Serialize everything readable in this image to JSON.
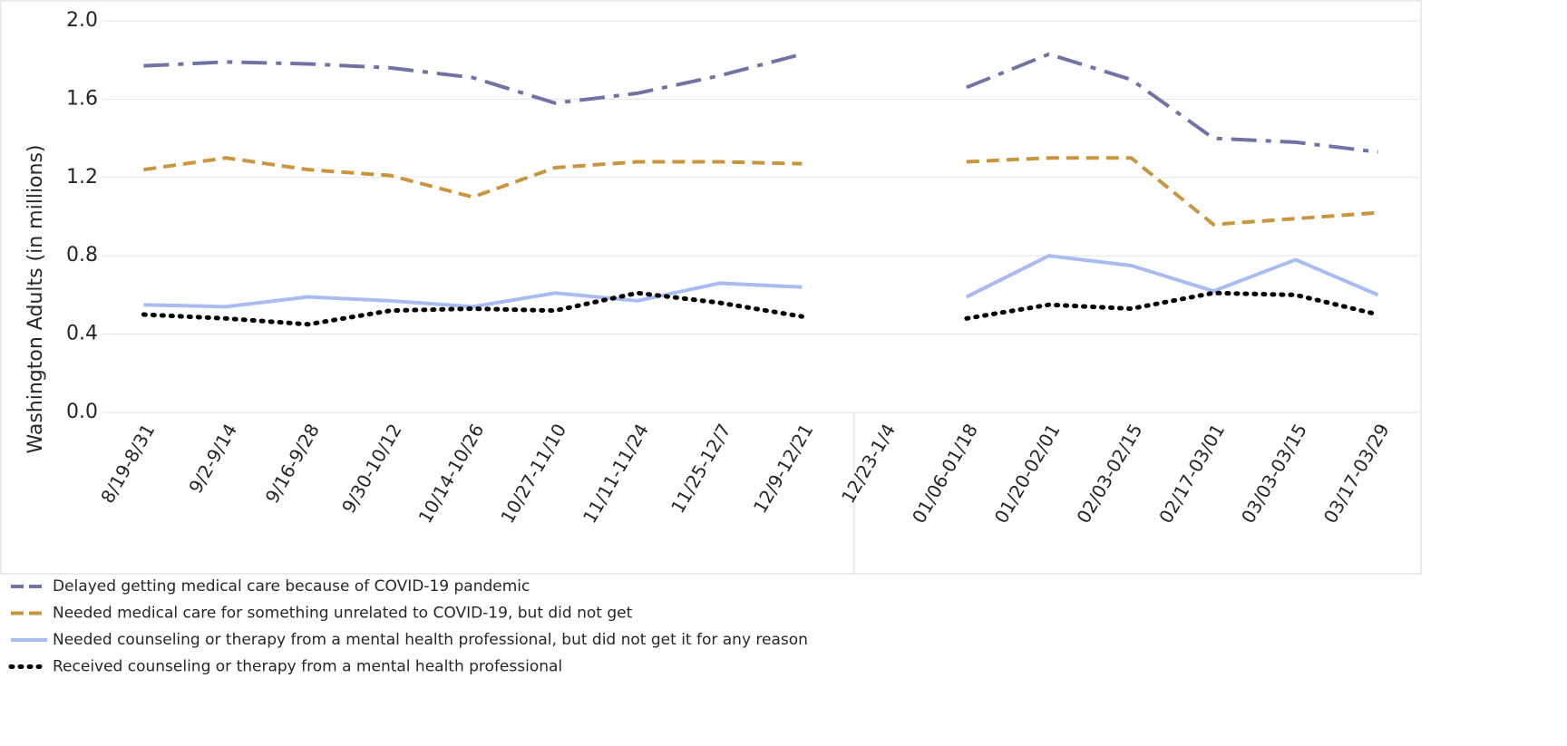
{
  "chart_data": {
    "type": "line",
    "y_label": "Washington Adults (in millions)",
    "categories": [
      "8/19-8/31",
      "9/2-9/14",
      "9/16-9/28",
      "9/30-10/12",
      "10/14-10/26",
      "10/27-11/10",
      "11/11-11/24",
      "11/25-12/7",
      "12/9-12/21",
      "12/23-1/4",
      "01/06-01/18",
      "01/20-02/01",
      "02/03-02/15",
      "02/17-03/01",
      "03/03-03/15",
      "03/17-03/29"
    ],
    "series": [
      {
        "name": "Delayed getting medical care because of COVID-19 pandemic",
        "color": "#6f74a6",
        "dash": "28 10 6 10",
        "values": [
          1.77,
          1.79,
          1.78,
          1.76,
          1.71,
          1.58,
          1.63,
          1.72,
          1.83,
          null,
          1.66,
          1.83,
          1.7,
          1.4,
          1.38,
          1.33
        ]
      },
      {
        "name": "Needed medical care for something unrelated to COVID-19, but did not get",
        "color": "#c9963e",
        "dash": "14 8",
        "values": [
          1.24,
          1.3,
          1.24,
          1.21,
          1.1,
          1.25,
          1.28,
          1.28,
          1.27,
          null,
          1.28,
          1.3,
          1.3,
          0.96,
          0.99,
          1.02
        ]
      },
      {
        "name": "Needed counseling or therapy from a mental health professional, but did not get it for any reason",
        "color": "#a9bcf2",
        "dash": "none",
        "values": [
          0.55,
          0.54,
          0.59,
          0.57,
          0.54,
          0.61,
          0.57,
          0.66,
          0.64,
          null,
          0.59,
          0.8,
          0.75,
          0.62,
          0.78,
          0.6
        ]
      },
      {
        "name": "Received counseling or therapy from a mental health professional",
        "color": "#000000",
        "dash": "2 8",
        "values": [
          0.5,
          0.48,
          0.45,
          0.52,
          0.53,
          0.52,
          0.61,
          0.56,
          0.49,
          null,
          0.48,
          0.55,
          0.53,
          0.61,
          0.6,
          0.5
        ]
      }
    ],
    "ylim": [
      0,
      2
    ],
    "yticks": [
      {
        "value": 0,
        "label": "0.0"
      },
      0.4,
      0.8,
      1.2,
      1.6,
      {
        "value": 2,
        "label": "2.0"
      }
    ],
    "grid": true,
    "legend": "bottom-left"
  }
}
